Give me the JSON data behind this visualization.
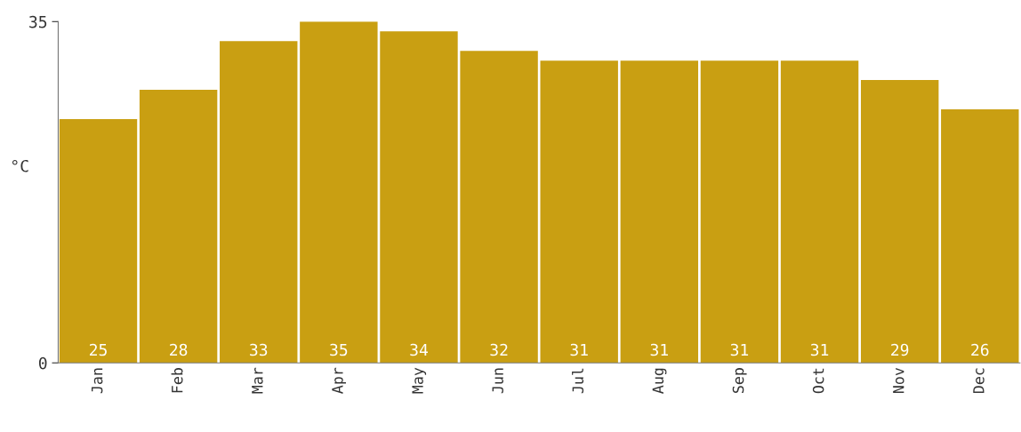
{
  "chart_data": {
    "type": "bar",
    "ylabel": "°C",
    "categories": [
      "Jan",
      "Feb",
      "Mar",
      "Apr",
      "May",
      "Jun",
      "Jul",
      "Aug",
      "Sep",
      "Oct",
      "Nov",
      "Dec"
    ],
    "values": [
      25,
      28,
      33,
      35,
      34,
      32,
      31,
      31,
      31,
      31,
      29,
      26
    ],
    "color": "#c99f12",
    "ylim": [
      0,
      35
    ],
    "yticks": [
      0,
      35
    ],
    "grid": false,
    "data_labels": true
  }
}
